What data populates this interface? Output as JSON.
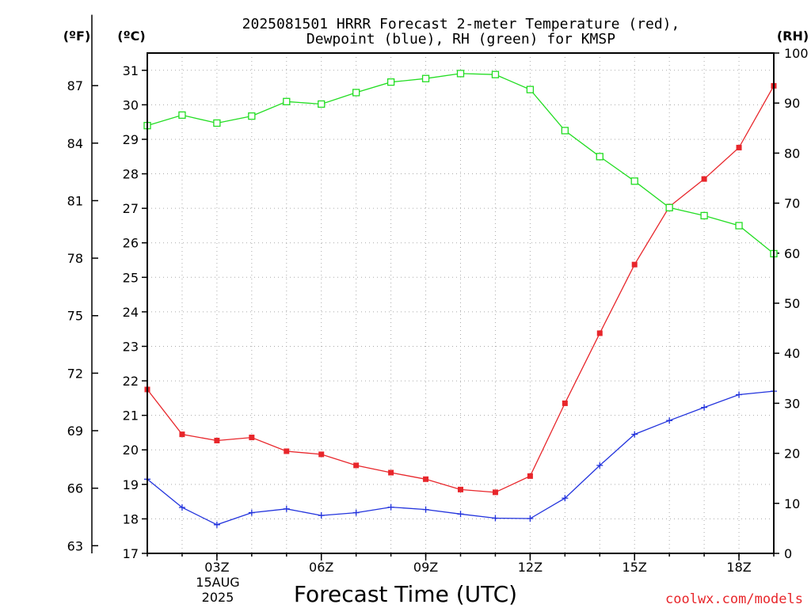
{
  "chart_data": {
    "type": "line",
    "title_line1": "2025081501 HRRR Forecast 2-meter Temperature (red),",
    "title_line2": "Dewpoint (blue), RH (green) for KMSP",
    "xlabel": "Forecast Time (UTC)",
    "credit": "coolwx.com/models",
    "unit_f": "(ºF)",
    "unit_c": "(ºC)",
    "unit_rh": "(RH)",
    "date_line1": "15AUG",
    "date_line2": "2025",
    "x": [
      1,
      2,
      3,
      4,
      5,
      6,
      7,
      8,
      9,
      10,
      11,
      12,
      13,
      14,
      15,
      16,
      17,
      18,
      19
    ],
    "x_ticks": [
      {
        "x": 3,
        "label": "03Z"
      },
      {
        "x": 6,
        "label": "06Z"
      },
      {
        "x": 9,
        "label": "09Z"
      },
      {
        "x": 12,
        "label": "12Z"
      },
      {
        "x": 15,
        "label": "15Z"
      },
      {
        "x": 18,
        "label": "18Z"
      }
    ],
    "xlim": [
      1,
      19
    ],
    "ylim_c": [
      17,
      31.5
    ],
    "ylim_rh": [
      0,
      100
    ],
    "y_ticks_c": [
      17,
      18,
      19,
      20,
      21,
      22,
      23,
      24,
      25,
      26,
      27,
      28,
      29,
      30,
      31
    ],
    "y_ticks_f": [
      63,
      66,
      69,
      72,
      75,
      78,
      81,
      84,
      87
    ],
    "y_ticks_rh": [
      0,
      10,
      20,
      30,
      40,
      50,
      60,
      70,
      80,
      90,
      100
    ],
    "grid": true,
    "series": [
      {
        "name": "Temperature",
        "axis": "c",
        "color": "#e8262b",
        "marker": "filled-square",
        "values": [
          21.75,
          20.45,
          20.27,
          20.36,
          19.96,
          19.87,
          19.55,
          19.34,
          19.15,
          18.85,
          18.77,
          19.24,
          21.35,
          23.38,
          25.37,
          27.05,
          27.85,
          28.76,
          30.55
        ]
      },
      {
        "name": "Dewpoint",
        "axis": "c",
        "color": "#2233dd",
        "marker": "plus",
        "values": [
          19.15,
          18.33,
          17.83,
          18.18,
          18.29,
          18.1,
          18.18,
          18.34,
          18.27,
          18.14,
          18.02,
          18.01,
          18.6,
          19.55,
          20.45,
          20.85,
          21.23,
          21.6,
          21.7
        ]
      },
      {
        "name": "RH",
        "axis": "rh",
        "color": "#22dd22",
        "marker": "open-square",
        "values": [
          85.5,
          87.6,
          86.0,
          87.4,
          90.3,
          89.8,
          92.1,
          94.2,
          94.9,
          95.9,
          95.7,
          92.7,
          84.5,
          79.3,
          74.4,
          69.1,
          67.5,
          65.5,
          59.9
        ]
      }
    ]
  }
}
